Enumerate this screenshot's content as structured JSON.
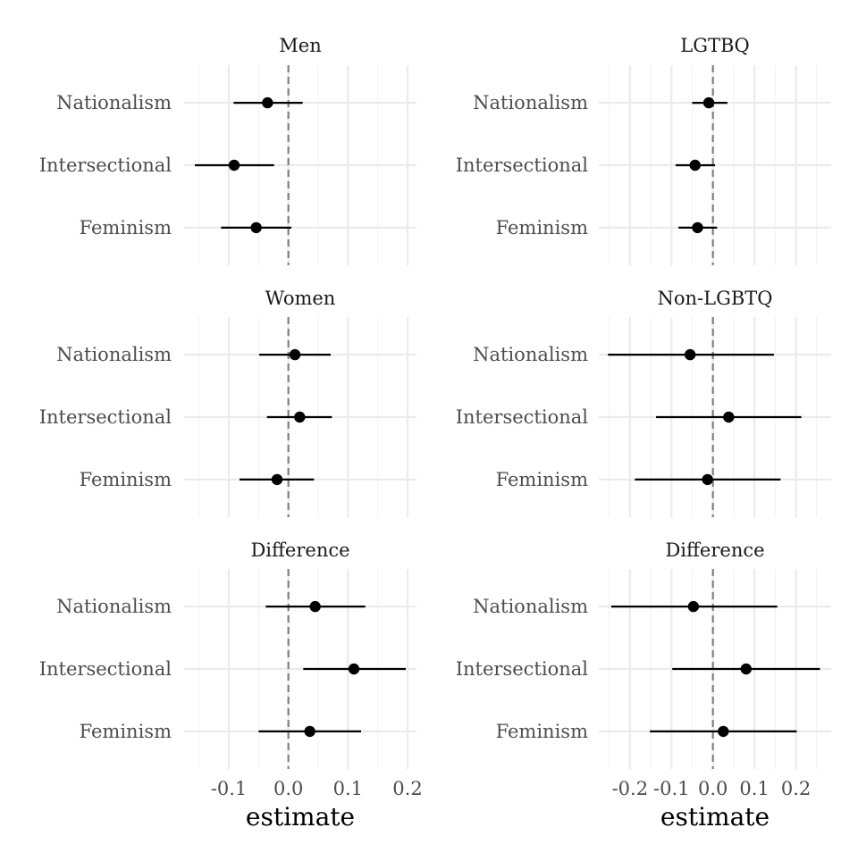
{
  "chart_data": {
    "type": "forest",
    "grid": true,
    "legend": "none",
    "columns": [
      {
        "xlabel": "estimate",
        "xlim": [
          -0.175,
          0.215
        ],
        "ticks": [
          -0.1,
          0.0,
          0.1,
          0.2
        ],
        "tick_labels": [
          "-0.1",
          "0.0",
          "0.1",
          "0.2"
        ],
        "minor_ticks": [
          -0.15,
          -0.05,
          0.05,
          0.15
        ],
        "panels": [
          {
            "title": "Men",
            "rows": [
              {
                "label": "Nationalism",
                "estimate": -0.035,
                "lower": -0.092,
                "upper": 0.024
              },
              {
                "label": "Intersectional",
                "estimate": -0.091,
                "lower": -0.157,
                "upper": -0.024
              },
              {
                "label": "Feminism",
                "estimate": -0.054,
                "lower": -0.113,
                "upper": 0.005
              }
            ]
          },
          {
            "title": "Women",
            "rows": [
              {
                "label": "Nationalism",
                "estimate": 0.011,
                "lower": -0.049,
                "upper": 0.071
              },
              {
                "label": "Intersectional",
                "estimate": 0.019,
                "lower": -0.036,
                "upper": 0.073
              },
              {
                "label": "Feminism",
                "estimate": -0.019,
                "lower": -0.082,
                "upper": 0.043
              }
            ]
          },
          {
            "title": "Difference",
            "rows": [
              {
                "label": "Nationalism",
                "estimate": 0.045,
                "lower": -0.038,
                "upper": 0.129
              },
              {
                "label": "Intersectional",
                "estimate": 0.11,
                "lower": 0.025,
                "upper": 0.197
              },
              {
                "label": "Feminism",
                "estimate": 0.036,
                "lower": -0.05,
                "upper": 0.122
              }
            ]
          }
        ]
      },
      {
        "xlabel": "estimate",
        "xlim": [
          -0.275,
          0.285
        ],
        "ticks": [
          -0.2,
          -0.1,
          0.0,
          0.1,
          0.2
        ],
        "tick_labels": [
          "-0.2",
          "-0.1",
          "0.0",
          "0.1",
          "0.2"
        ],
        "minor_ticks": [
          -0.25,
          -0.15,
          -0.05,
          0.05,
          0.15,
          0.25
        ],
        "panels": [
          {
            "title": "LGTBQ",
            "rows": [
              {
                "label": "Nationalism",
                "estimate": -0.01,
                "lower": -0.05,
                "upper": 0.035
              },
              {
                "label": "Intersectional",
                "estimate": -0.043,
                "lower": -0.09,
                "upper": 0.005
              },
              {
                "label": "Feminism",
                "estimate": -0.037,
                "lower": -0.083,
                "upper": 0.01
              }
            ]
          },
          {
            "title": "Non-LGBTQ",
            "rows": [
              {
                "label": "Nationalism",
                "estimate": -0.055,
                "lower": -0.253,
                "upper": 0.147
              },
              {
                "label": "Intersectional",
                "estimate": 0.038,
                "lower": -0.137,
                "upper": 0.213
              },
              {
                "label": "Feminism",
                "estimate": -0.013,
                "lower": -0.188,
                "upper": 0.163
              }
            ]
          },
          {
            "title": "Difference",
            "rows": [
              {
                "label": "Nationalism",
                "estimate": -0.047,
                "lower": -0.245,
                "upper": 0.155
              },
              {
                "label": "Intersectional",
                "estimate": 0.08,
                "lower": -0.098,
                "upper": 0.258
              },
              {
                "label": "Feminism",
                "estimate": 0.025,
                "lower": -0.152,
                "upper": 0.202
              }
            ]
          }
        ]
      }
    ]
  }
}
